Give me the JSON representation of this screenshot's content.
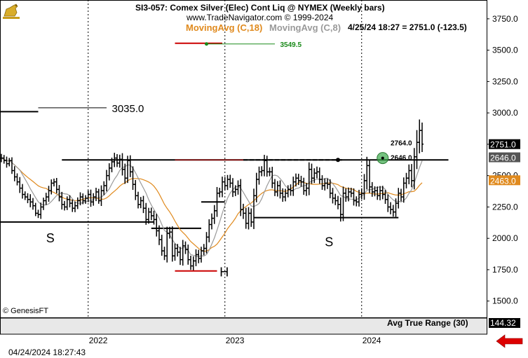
{
  "header": {
    "symbol_line": "SI3-057:  Comex Silver (Elec) Cont Liq @ NYMEX  (Weekly bars)",
    "copyright_line": "www.TradeNavigator.com © 1999-2024",
    "ma_slow_label": "MovingAvg (C,18)",
    "ma_fast_label": "MovingAvg (C,8)",
    "quote_line": "4/25/24 18:27 = 2751.0 (-123.5)"
  },
  "footer": {
    "watermark": "© GenesisFT",
    "timestamp": "04/24/2024 18:27:43",
    "indicator_label": "Avg True Range (30)",
    "indicator_value": "144.32"
  },
  "colors": {
    "ma_slow": "#e08a1e",
    "ma_fast": "#9a9a9a",
    "bars": "#000000",
    "projection_red": "#cc0000",
    "projection_green": "#1a8a1a",
    "current_price_box": "#000000",
    "level_box_gray": "#555555",
    "ma_box": "#e08a1e",
    "arrow_red": "#dd0000"
  },
  "chart_data": {
    "type": "ohlc",
    "ylim": [
      1370,
      3900
    ],
    "yticks": [
      1500.0,
      1750.0,
      2000.0,
      2250.0,
      2500.0,
      2750.0,
      3000.0,
      3250.0,
      3500.0,
      3750.0
    ],
    "ytick_labels": [
      "1500.0",
      "1750.0",
      "2000.0",
      "2250.0",
      "2500.0",
      "2750.0",
      "3000.0",
      "3250.0",
      "3500.0",
      "3750.0"
    ],
    "xlabels": [
      {
        "label": "2022",
        "week": 33
      },
      {
        "label": "2023",
        "week": 85
      },
      {
        "label": "2024",
        "week": 137
      }
    ],
    "week_count": 171,
    "closes": [
      2640,
      2620,
      2595,
      2620,
      2540,
      2490,
      2450,
      2400,
      2350,
      2330,
      2310,
      2290,
      2260,
      2200,
      2190,
      2250,
      2300,
      2330,
      2380,
      2440,
      2450,
      2390,
      2330,
      2270,
      2250,
      2310,
      2280,
      2240,
      2260,
      2300,
      2330,
      2300,
      2320,
      2350,
      2290,
      2330,
      2370,
      2300,
      2380,
      2420,
      2500,
      2560,
      2610,
      2640,
      2600,
      2630,
      2550,
      2480,
      2620,
      2530,
      2430,
      2340,
      2270,
      2300,
      2240,
      2150,
      2210,
      2180,
      2150,
      2060,
      1990,
      1900,
      1860,
      2040,
      2050,
      1860,
      1920,
      1890,
      1830,
      1940,
      1910,
      1830,
      1780,
      1820,
      1870,
      1840,
      1900,
      1920,
      2010,
      2110,
      2160,
      2220,
      2360,
      2370,
      2450,
      2420,
      2470,
      2440,
      2370,
      2390,
      2420,
      2230,
      2200,
      2120,
      2200,
      2130,
      2340,
      2470,
      2530,
      2540,
      2620,
      2530,
      2530,
      2440,
      2370,
      2420,
      2360,
      2330,
      2360,
      2390,
      2380,
      2450,
      2480,
      2460,
      2450,
      2380,
      2400,
      2550,
      2480,
      2520,
      2530,
      2470,
      2420,
      2440,
      2430,
      2360,
      2320,
      2300,
      2270,
      2190,
      2360,
      2330,
      2370,
      2360,
      2300,
      2290,
      2350,
      2360,
      2460,
      2580,
      2410,
      2370,
      2380,
      2340,
      2380,
      2350,
      2310,
      2250,
      2230,
      2210,
      2280,
      2360,
      2330,
      2440,
      2480,
      2540,
      2460,
      2650,
      2765,
      2860,
      2751
    ],
    "ranges": [
      95,
      70,
      90,
      60,
      75,
      100,
      80,
      110,
      95,
      70,
      85,
      120,
      90,
      65,
      80,
      100,
      70,
      95,
      110,
      85,
      75,
      90,
      100,
      115,
      80,
      70,
      95,
      85,
      90,
      75,
      105,
      80,
      70,
      90,
      110,
      85,
      95,
      70,
      120,
      100,
      130,
      110,
      95,
      120,
      90,
      105,
      140,
      130,
      110,
      120,
      125,
      100,
      90,
      85,
      110,
      120,
      95,
      100,
      115,
      130,
      125,
      110,
      95,
      150,
      120,
      130,
      110,
      100,
      120,
      135,
      100,
      115,
      90,
      105,
      120,
      110,
      95,
      100,
      115,
      120,
      110,
      130,
      140,
      95,
      120,
      110,
      100,
      105,
      115,
      95,
      120,
      150,
      130,
      125,
      140,
      110,
      160,
      150,
      120,
      100,
      130,
      110,
      100,
      115,
      95,
      105,
      120,
      110,
      100,
      95,
      115,
      120,
      105,
      100,
      110,
      95,
      120,
      160,
      130,
      110,
      120,
      100,
      95,
      110,
      105,
      115,
      120,
      100,
      110,
      160,
      150,
      110,
      100,
      95,
      110,
      100,
      105,
      110,
      150,
      200,
      140,
      110,
      100,
      95,
      105,
      110,
      100,
      115,
      110,
      105,
      110,
      120,
      100,
      130,
      120,
      140,
      150,
      200,
      280,
      250,
      180
    ],
    "levels": [
      {
        "name": "neckline",
        "y": 2625,
        "x0": 23,
        "x1": 170
      },
      {
        "name": "left-shoulder-line",
        "y": 2130,
        "x0": -1,
        "x1": 58
      },
      {
        "name": "head-line",
        "y": 2080,
        "x0": 57,
        "x1": 76
      },
      {
        "name": "right-shoulder-line",
        "y": 2165,
        "x0": 96,
        "x1": 151
      },
      {
        "name": "bar-level-line",
        "y": 2290,
        "x0": 76,
        "x1": 85
      },
      {
        "name": "upper-projection-line",
        "y": 3010,
        "x0": -1,
        "x1": 14
      },
      {
        "name": "upper-projection-guide",
        "y": 3035,
        "x0": 14,
        "x1": 40
      }
    ],
    "labels": [
      {
        "text": "3035.0",
        "y": 3035,
        "week": 42
      },
      {
        "text": "S",
        "y": 2000,
        "week": 17
      },
      {
        "text": "H",
        "y": 1730,
        "week": 83
      },
      {
        "text": "S",
        "y": 1970,
        "week": 123
      },
      {
        "text": "3549.5",
        "y": 3549.5,
        "week": 106
      },
      {
        "text": "2764.0",
        "y": 2764,
        "week": 148
      },
      {
        "text": "2646.0",
        "y": 2646,
        "week": 148
      }
    ],
    "projections": {
      "red_upper": {
        "y": 3555,
        "x0": 66,
        "x1": 84
      },
      "green_upper": {
        "y": 3549.5,
        "x0": 78,
        "x1": 104
      },
      "red_lower": {
        "y": 1740,
        "x0": 66,
        "x1": 82
      }
    },
    "markers": [
      {
        "name": "neckline-break-point",
        "y": 2625,
        "week": 128
      },
      {
        "name": "breakout-circle",
        "y": 2640,
        "week": 145
      }
    ],
    "price_boxes": [
      {
        "name": "last-price",
        "value": "2751.0",
        "y": 2751
      },
      {
        "name": "level-price",
        "value": "2646.0",
        "y": 2646
      },
      {
        "name": "ma-price",
        "value": "2463.0",
        "y": 2463
      }
    ]
  }
}
